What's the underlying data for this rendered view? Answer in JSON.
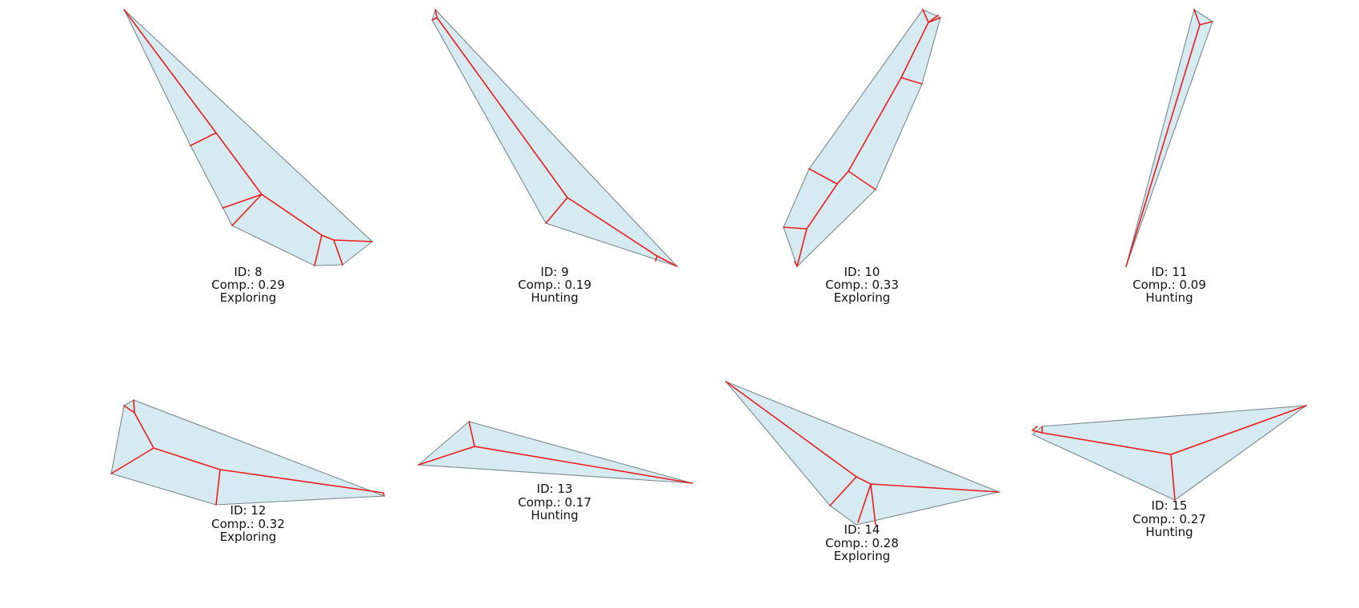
{
  "panels": [
    {
      "id_text": "ID: 8",
      "comp_text": "Comp.: 0.29",
      "state_text": "Exploring"
    },
    {
      "id_text": "ID: 9",
      "comp_text": "Comp.: 0.19",
      "state_text": "Hunting"
    },
    {
      "id_text": "ID: 10",
      "comp_text": "Comp.: 0.33",
      "state_text": "Exploring"
    },
    {
      "id_text": "ID: 11",
      "comp_text": "Comp.: 0.09",
      "state_text": "Hunting"
    },
    {
      "id_text": "ID: 12",
      "comp_text": "Comp.: 0.32",
      "state_text": "Exploring"
    },
    {
      "id_text": "ID: 13",
      "comp_text": "Comp.: 0.17",
      "state_text": "Hunting"
    },
    {
      "id_text": "ID: 14",
      "comp_text": "Comp.: 0.28",
      "state_text": "Exploring"
    },
    {
      "id_text": "ID: 15",
      "comp_text": "Comp.: 0.27",
      "state_text": "Hunting"
    }
  ],
  "colors": {
    "polygon_fill": "#d5eaf1",
    "polygon_edge": "#7a8a8e",
    "skeleton": "#ee1c1c"
  }
}
